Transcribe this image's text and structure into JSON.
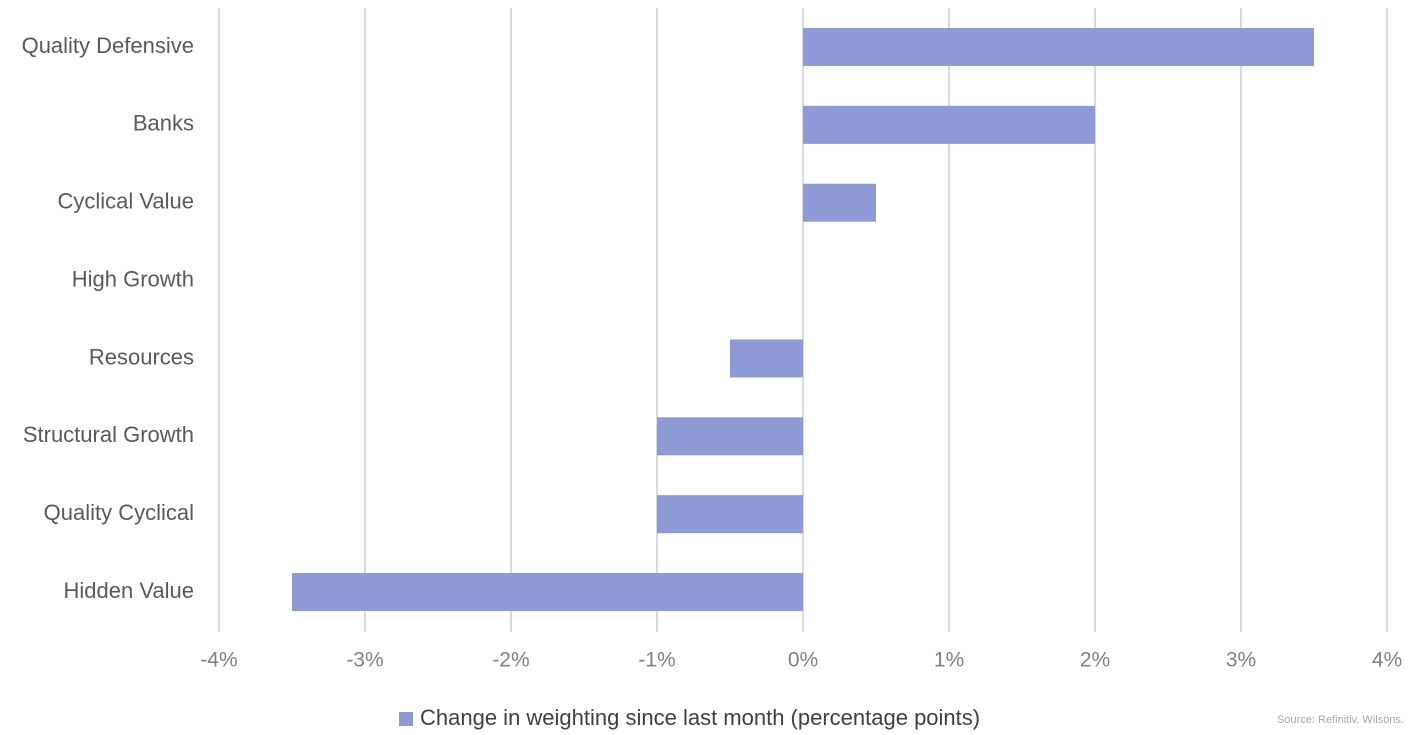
{
  "chart_data": {
    "type": "bar",
    "orientation": "horizontal",
    "categories": [
      "Quality Defensive",
      "Banks",
      "Cyclical Value",
      "High Growth",
      "Resources",
      "Structural Growth",
      "Quality Cyclical",
      "Hidden Value"
    ],
    "series": [
      {
        "name": "Change in weighting since last month (percentage points)",
        "values": [
          3.5,
          2.0,
          0.5,
          0.0,
          -0.5,
          -1.0,
          -1.0,
          -3.5
        ],
        "color": "#8e9ad6"
      }
    ],
    "xlim": [
      -4,
      4
    ],
    "xticks": [
      -4,
      -3,
      -2,
      -1,
      0,
      1,
      2,
      3,
      4
    ],
    "xtick_labels": [
      "-4%",
      "-3%",
      "-2%",
      "-1%",
      "0%",
      "1%",
      "2%",
      "3%",
      "4%"
    ],
    "grid": "vertical",
    "legend_position": "bottom-center",
    "source": "Source: Refinitiv, Wilsons."
  }
}
